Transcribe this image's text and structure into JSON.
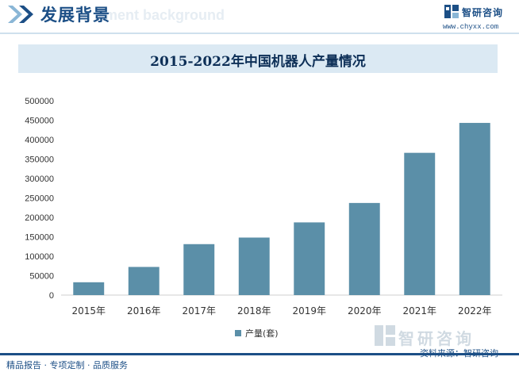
{
  "header": {
    "title": "发展背景",
    "subtitle": "ment background"
  },
  "brand": {
    "name": "智研咨询",
    "url": "www.chyxx.com",
    "icon": "zhiyan-logo-icon"
  },
  "footer": {
    "services": "精品报告 · 专项定制 · 品质服务",
    "source": "资料来源：智研咨询"
  },
  "colors": {
    "bar": "#5b8fa8",
    "title_bg": "#dbe9f3",
    "brand": "#1c4f86",
    "axis_text": "#333333"
  },
  "chart_data": {
    "type": "bar",
    "title": "2015-2022年中国机器人产量情况",
    "categories": [
      "2015年",
      "2016年",
      "2017年",
      "2018年",
      "2019年",
      "2020年",
      "2021年",
      "2022年"
    ],
    "series": [
      {
        "name": "产量(套)",
        "values": [
          32996,
          72426,
          131079,
          148000,
          187000,
          237000,
          366000,
          443000
        ]
      }
    ],
    "ylim": [
      0,
      500000
    ],
    "yticks": [
      "0",
      "50000",
      "100000",
      "150000",
      "200000",
      "250000",
      "300000",
      "350000",
      "400000",
      "450000",
      "500000"
    ],
    "grid": false,
    "legend": "bottom"
  }
}
